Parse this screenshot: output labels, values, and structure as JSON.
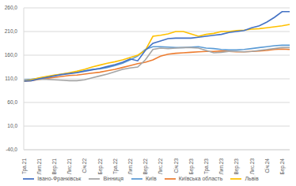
{
  "chart_data": {
    "type": "line",
    "categories": [
      "Тра.21",
      null,
      "Лип.21",
      null,
      "Вер.21",
      null,
      "Лис.21",
      null,
      "Січ.22",
      null,
      "Бер.22",
      null,
      "Тра.22",
      null,
      "Лип.22",
      null,
      "Вер.22",
      null,
      "Лис.22",
      null,
      "Січ.23",
      null,
      "Бер.23",
      null,
      "Тра.23",
      null,
      "Лип.23",
      null,
      "Вер.23",
      null,
      "Лис.23",
      null,
      "Січ.24",
      null,
      "Бер.24",
      null
    ],
    "series": [
      {
        "name": "Київ",
        "color": "#5b9bd5",
        "values": [
          108,
          109,
          111,
          114,
          117,
          120,
          122,
          124,
          127,
          130,
          131,
          134,
          138,
          143,
          150,
          158,
          172,
          178,
          178,
          177,
          176,
          176,
          177,
          178,
          175,
          174,
          172,
          171,
          171,
          172,
          174,
          176,
          178,
          180,
          181,
          181
        ]
      },
      {
        "name": "Київська область",
        "color": "#ed7d31",
        "values": [
          105,
          106,
          109,
          111,
          113,
          115,
          117,
          118,
          120,
          122,
          124,
          127,
          130,
          134,
          138,
          142,
          145,
          150,
          158,
          162,
          164,
          165,
          166,
          167,
          168,
          168,
          169,
          168,
          167,
          167,
          168,
          169,
          170,
          172,
          173,
          172
        ]
      },
      {
        "name": "Вінниця",
        "color": "#a5a5a5",
        "values": [
          107,
          108,
          109,
          109,
          108,
          107,
          106,
          106,
          108,
          112,
          116,
          120,
          125,
          130,
          133,
          135,
          150,
          172,
          175,
          174,
          175,
          176,
          176,
          175,
          170,
          165,
          166,
          168,
          168,
          167,
          168,
          170,
          172,
          174,
          176,
          176
        ]
      },
      {
        "name": "Львів",
        "color": "#ffc000",
        "values": [
          105,
          108,
          112,
          115,
          118,
          120,
          123,
          126,
          130,
          135,
          139,
          143,
          146,
          150,
          155,
          160,
          170,
          200,
          202,
          205,
          210,
          210,
          205,
          200,
          204,
          206,
          210,
          210,
          212,
          213,
          215,
          216,
          218,
          220,
          222,
          225
        ]
      },
      {
        "name": "Івано-Франківськ",
        "color": "#4472c4",
        "values": [
          105,
          106,
          110,
          113,
          116,
          119,
          121,
          123,
          126,
          129,
          132,
          136,
          140,
          145,
          152,
          148,
          170,
          185,
          190,
          195,
          196,
          196,
          196,
          198,
          200,
          202,
          204,
          208,
          210,
          212,
          218,
          222,
          230,
          240,
          252,
          252
        ]
      }
    ],
    "ylim": [
      -40,
      260
    ],
    "yticks": [
      {
        "value": -40,
        "label": "-40,0"
      },
      {
        "value": 10,
        "label": "10,0"
      },
      {
        "value": 60,
        "label": "60,0"
      },
      {
        "value": 110,
        "label": "110,0"
      },
      {
        "value": 160,
        "label": "160,0"
      },
      {
        "value": 210,
        "label": "210,0"
      },
      {
        "value": 260,
        "label": "260,0"
      }
    ],
    "grid": true,
    "legend": "bottom"
  }
}
